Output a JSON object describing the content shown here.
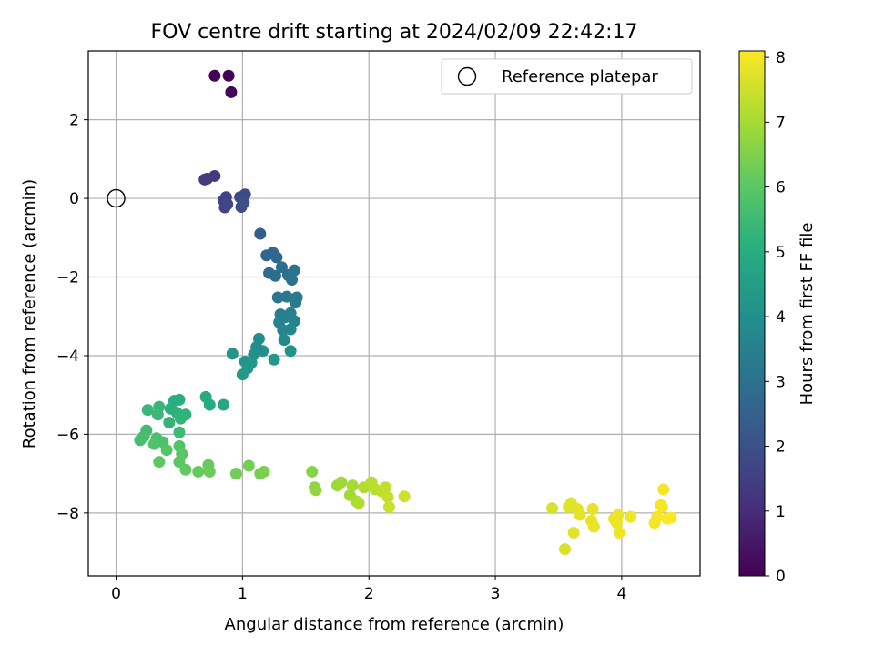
{
  "chart_data": {
    "type": "scatter",
    "title": "FOV centre drift starting at 2024/02/09 22:42:17",
    "xlabel": "Angular distance from reference (arcmin)",
    "ylabel": "Rotation from reference (arcmin)",
    "xlim": [
      -0.22,
      4.62
    ],
    "ylim": [
      -9.6,
      3.75
    ],
    "xticks": [
      0,
      1,
      2,
      3,
      4
    ],
    "xtick_labels": [
      "0",
      "1",
      "2",
      "3",
      "4"
    ],
    "yticks": [
      2,
      0,
      -2,
      -4,
      -6,
      -8
    ],
    "ytick_labels": [
      "2",
      "0",
      "−2",
      "−4",
      "−6",
      "−8"
    ],
    "grid": true,
    "legend": {
      "position": "top-right",
      "entries": [
        "Reference platepar"
      ]
    },
    "colorbar": {
      "label": "Hours from first FF file",
      "range": [
        0,
        8.1
      ],
      "ticks": [
        0,
        1,
        2,
        3,
        4,
        5,
        6,
        7,
        8
      ],
      "tick_labels": [
        "0",
        "1",
        "2",
        "3",
        "4",
        "5",
        "6",
        "7",
        "8"
      ],
      "colormap": "viridis"
    },
    "reference": {
      "x": 0,
      "y": 0
    },
    "series": [
      {
        "values": [
          {
            "x": 0.78,
            "y": 3.12,
            "c": 0.05
          },
          {
            "x": 0.89,
            "y": 3.12,
            "c": 0.1
          },
          {
            "x": 0.91,
            "y": 2.7,
            "c": 0.15
          },
          {
            "x": 0.78,
            "y": 0.57,
            "c": 1.3
          },
          {
            "x": 0.7,
            "y": 0.48,
            "c": 1.35
          },
          {
            "x": 0.72,
            "y": 0.5,
            "c": 1.4
          },
          {
            "x": 0.87,
            "y": 0.03,
            "c": 1.6
          },
          {
            "x": 0.85,
            "y": -0.05,
            "c": 1.65
          },
          {
            "x": 0.86,
            "y": -0.23,
            "c": 1.7
          },
          {
            "x": 0.88,
            "y": -0.15,
            "c": 1.75
          },
          {
            "x": 0.98,
            "y": 0.03,
            "c": 1.8
          },
          {
            "x": 1.02,
            "y": 0.1,
            "c": 1.85
          },
          {
            "x": 0.99,
            "y": -0.22,
            "c": 1.9
          },
          {
            "x": 1.01,
            "y": -0.1,
            "c": 1.95
          },
          {
            "x": 1.14,
            "y": -0.9,
            "c": 2.4
          },
          {
            "x": 1.19,
            "y": -1.45,
            "c": 2.6
          },
          {
            "x": 1.24,
            "y": -1.38,
            "c": 2.7
          },
          {
            "x": 1.27,
            "y": -1.5,
            "c": 2.75
          },
          {
            "x": 1.21,
            "y": -1.9,
            "c": 2.8
          },
          {
            "x": 1.26,
            "y": -1.97,
            "c": 2.85
          },
          {
            "x": 1.31,
            "y": -1.75,
            "c": 2.9
          },
          {
            "x": 1.36,
            "y": -1.95,
            "c": 2.95
          },
          {
            "x": 1.39,
            "y": -2.07,
            "c": 3.0
          },
          {
            "x": 1.41,
            "y": -1.83,
            "c": 3.05
          },
          {
            "x": 1.28,
            "y": -2.52,
            "c": 3.15
          },
          {
            "x": 1.35,
            "y": -2.5,
            "c": 3.2
          },
          {
            "x": 1.42,
            "y": -2.65,
            "c": 3.25
          },
          {
            "x": 1.43,
            "y": -2.52,
            "c": 3.3
          },
          {
            "x": 1.3,
            "y": -2.95,
            "c": 3.4
          },
          {
            "x": 1.34,
            "y": -3.02,
            "c": 3.45
          },
          {
            "x": 1.38,
            "y": -2.92,
            "c": 3.5
          },
          {
            "x": 1.41,
            "y": -3.12,
            "c": 3.55
          },
          {
            "x": 1.29,
            "y": -3.15,
            "c": 3.6
          },
          {
            "x": 1.32,
            "y": -3.35,
            "c": 3.65
          },
          {
            "x": 1.38,
            "y": -3.33,
            "c": 3.7
          },
          {
            "x": 1.33,
            "y": -3.6,
            "c": 3.8
          },
          {
            "x": 1.13,
            "y": -3.57,
            "c": 3.9
          },
          {
            "x": 1.11,
            "y": -3.78,
            "c": 3.95
          },
          {
            "x": 1.16,
            "y": -3.88,
            "c": 4.0
          },
          {
            "x": 1.09,
            "y": -3.97,
            "c": 4.05
          },
          {
            "x": 1.38,
            "y": -3.88,
            "c": 4.1
          },
          {
            "x": 0.92,
            "y": -3.95,
            "c": 4.15
          },
          {
            "x": 1.02,
            "y": -4.15,
            "c": 4.2
          },
          {
            "x": 1.07,
            "y": -4.18,
            "c": 4.25
          },
          {
            "x": 1.04,
            "y": -4.32,
            "c": 4.3
          },
          {
            "x": 1.25,
            "y": -4.1,
            "c": 4.3
          },
          {
            "x": 1.0,
            "y": -4.48,
            "c": 4.35
          },
          {
            "x": 0.85,
            "y": -5.25,
            "c": 4.8
          },
          {
            "x": 0.71,
            "y": -5.05,
            "c": 4.9
          },
          {
            "x": 0.74,
            "y": -5.25,
            "c": 4.95
          },
          {
            "x": 0.46,
            "y": -5.15,
            "c": 5.0
          },
          {
            "x": 0.5,
            "y": -5.12,
            "c": 5.05
          },
          {
            "x": 0.43,
            "y": -5.35,
            "c": 5.1
          },
          {
            "x": 0.48,
            "y": -5.45,
            "c": 5.15
          },
          {
            "x": 0.55,
            "y": -5.5,
            "c": 5.2
          },
          {
            "x": 0.51,
            "y": -5.6,
            "c": 5.25
          },
          {
            "x": 0.42,
            "y": -5.7,
            "c": 5.3
          },
          {
            "x": 0.34,
            "y": -5.3,
            "c": 5.35
          },
          {
            "x": 0.25,
            "y": -5.38,
            "c": 5.4
          },
          {
            "x": 0.33,
            "y": -5.5,
            "c": 5.45
          },
          {
            "x": 0.5,
            "y": -5.95,
            "c": 5.5
          },
          {
            "x": 0.24,
            "y": -5.9,
            "c": 5.55
          },
          {
            "x": 0.22,
            "y": -6.05,
            "c": 5.6
          },
          {
            "x": 0.19,
            "y": -6.15,
            "c": 5.65
          },
          {
            "x": 0.32,
            "y": -6.1,
            "c": 5.7
          },
          {
            "x": 0.37,
            "y": -6.2,
            "c": 5.75
          },
          {
            "x": 0.3,
            "y": -6.25,
            "c": 5.8
          },
          {
            "x": 0.5,
            "y": -6.3,
            "c": 5.85
          },
          {
            "x": 0.4,
            "y": -6.4,
            "c": 5.9
          },
          {
            "x": 0.52,
            "y": -6.5,
            "c": 5.95
          },
          {
            "x": 0.5,
            "y": -6.7,
            "c": 6.0
          },
          {
            "x": 0.34,
            "y": -6.7,
            "c": 6.05
          },
          {
            "x": 0.55,
            "y": -6.9,
            "c": 6.1
          },
          {
            "x": 0.65,
            "y": -6.95,
            "c": 6.15
          },
          {
            "x": 0.73,
            "y": -6.78,
            "c": 6.2
          },
          {
            "x": 0.74,
            "y": -6.95,
            "c": 6.25
          },
          {
            "x": 0.95,
            "y": -7.0,
            "c": 6.3
          },
          {
            "x": 1.05,
            "y": -6.8,
            "c": 6.35
          },
          {
            "x": 1.14,
            "y": -7.0,
            "c": 6.4
          },
          {
            "x": 1.17,
            "y": -6.95,
            "c": 6.45
          },
          {
            "x": 1.55,
            "y": -6.95,
            "c": 6.6
          },
          {
            "x": 1.57,
            "y": -7.35,
            "c": 6.7
          },
          {
            "x": 1.58,
            "y": -7.42,
            "c": 6.75
          },
          {
            "x": 1.75,
            "y": -7.3,
            "c": 6.85
          },
          {
            "x": 1.78,
            "y": -7.22,
            "c": 6.9
          },
          {
            "x": 1.85,
            "y": -7.55,
            "c": 6.95
          },
          {
            "x": 1.87,
            "y": -7.3,
            "c": 7.0
          },
          {
            "x": 1.9,
            "y": -7.7,
            "c": 7.05
          },
          {
            "x": 1.92,
            "y": -7.75,
            "c": 7.1
          },
          {
            "x": 1.96,
            "y": -7.35,
            "c": 7.15
          },
          {
            "x": 2.02,
            "y": -7.22,
            "c": 7.2
          },
          {
            "x": 2.05,
            "y": -7.4,
            "c": 7.25
          },
          {
            "x": 2.1,
            "y": -7.45,
            "c": 7.3
          },
          {
            "x": 2.13,
            "y": -7.35,
            "c": 7.35
          },
          {
            "x": 2.15,
            "y": -7.6,
            "c": 7.4
          },
          {
            "x": 2.16,
            "y": -7.85,
            "c": 7.45
          },
          {
            "x": 2.28,
            "y": -7.58,
            "c": 7.5
          },
          {
            "x": 3.45,
            "y": -7.88,
            "c": 7.6
          },
          {
            "x": 3.55,
            "y": -8.92,
            "c": 7.65
          },
          {
            "x": 3.58,
            "y": -7.85,
            "c": 7.7
          },
          {
            "x": 3.6,
            "y": -7.75,
            "c": 7.72
          },
          {
            "x": 3.62,
            "y": -8.5,
            "c": 7.74
          },
          {
            "x": 3.65,
            "y": -7.9,
            "c": 7.76
          },
          {
            "x": 3.67,
            "y": -8.05,
            "c": 7.78
          },
          {
            "x": 3.76,
            "y": -8.2,
            "c": 7.8
          },
          {
            "x": 3.77,
            "y": -7.9,
            "c": 7.82
          },
          {
            "x": 3.78,
            "y": -8.35,
            "c": 7.84
          },
          {
            "x": 3.94,
            "y": -8.15,
            "c": 7.86
          },
          {
            "x": 3.96,
            "y": -8.25,
            "c": 7.88
          },
          {
            "x": 3.97,
            "y": -8.05,
            "c": 7.9
          },
          {
            "x": 3.98,
            "y": -8.5,
            "c": 7.92
          },
          {
            "x": 4.07,
            "y": -8.1,
            "c": 7.94
          },
          {
            "x": 4.26,
            "y": -8.25,
            "c": 7.96
          },
          {
            "x": 4.28,
            "y": -8.1,
            "c": 7.98
          },
          {
            "x": 4.31,
            "y": -7.8,
            "c": 8.0
          },
          {
            "x": 4.32,
            "y": -7.85,
            "c": 8.02
          },
          {
            "x": 4.33,
            "y": -7.4,
            "c": 8.04
          },
          {
            "x": 4.36,
            "y": -8.15,
            "c": 8.06
          },
          {
            "x": 4.39,
            "y": -8.12,
            "c": 8.08
          }
        ]
      }
    ]
  }
}
